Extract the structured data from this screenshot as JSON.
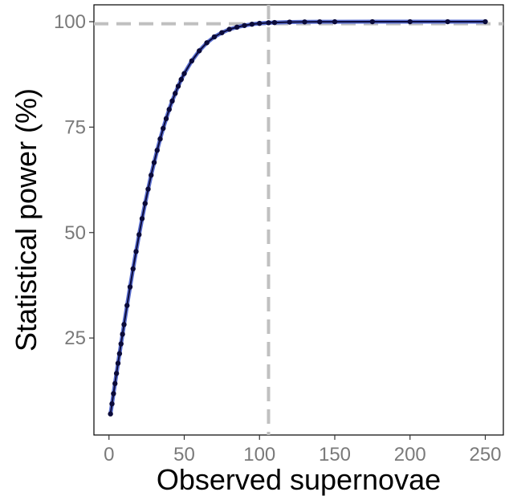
{
  "chart_data": {
    "type": "scatter",
    "title": "",
    "xlabel": "Observed  supernovae",
    "ylabel": "Statistical power (%)",
    "xlim": [
      -10,
      262
    ],
    "ylim": [
      2,
      104
    ],
    "x_ticks": [
      0,
      50,
      100,
      150,
      200,
      250
    ],
    "y_ticks": [
      25,
      50,
      75,
      100
    ],
    "grid": false,
    "legend": "none",
    "series": [
      {
        "point_color": "#0b0b3b",
        "line_color": "#5b6fd0",
        "x": [
          1,
          2,
          3,
          4,
          5,
          6,
          7,
          8,
          9,
          10,
          12,
          14,
          16,
          18,
          20,
          22,
          24,
          26,
          28,
          30,
          32,
          34,
          36,
          38,
          40,
          42,
          44,
          46,
          48,
          50,
          55,
          60,
          65,
          70,
          75,
          80,
          85,
          90,
          95,
          100,
          106,
          110,
          120,
          130,
          140,
          150,
          175,
          200,
          225,
          250
        ],
        "values": [
          7.0,
          9.4,
          11.8,
          14.2,
          16.6,
          19.0,
          21.3,
          23.6,
          25.9,
          28.2,
          32.7,
          37.1,
          41.4,
          45.5,
          49.5,
          53.3,
          56.9,
          60.3,
          63.6,
          66.6,
          69.5,
          72.2,
          74.7,
          77.0,
          79.2,
          81.2,
          83.0,
          84.7,
          86.3,
          87.7,
          90.7,
          93.1,
          95.0,
          96.4,
          97.4,
          98.2,
          98.7,
          99.1,
          99.4,
          99.6,
          99.75,
          99.8,
          99.9,
          99.95,
          99.97,
          99.98,
          100,
          100,
          100,
          100
        ]
      }
    ],
    "reference_lines": {
      "horizontal_y": 99.5,
      "vertical_x": 106,
      "color": "#c0c0c0"
    }
  }
}
